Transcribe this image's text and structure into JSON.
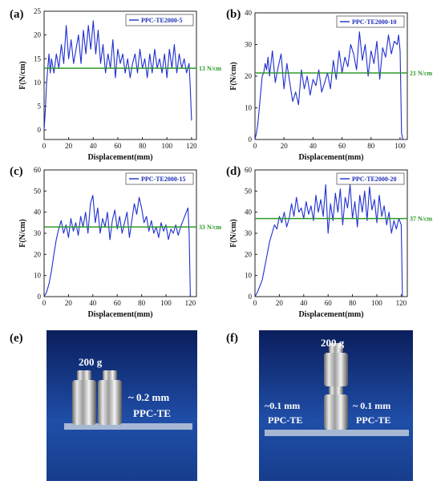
{
  "chart_data": [
    {
      "id": "a",
      "panel_label": "(a)",
      "type": "line",
      "series": [
        {
          "name": "PPC-TE2000-5",
          "color": "#1f2fd0",
          "x": [
            0,
            1,
            2,
            3,
            4,
            5,
            6,
            8,
            10,
            12,
            14,
            16,
            18,
            20,
            22,
            24,
            26,
            28,
            30,
            32,
            34,
            36,
            38,
            40,
            42,
            44,
            46,
            48,
            50,
            52,
            54,
            56,
            58,
            60,
            62,
            64,
            66,
            68,
            70,
            72,
            74,
            76,
            78,
            80,
            82,
            84,
            86,
            88,
            90,
            92,
            94,
            96,
            98,
            100,
            102,
            104,
            106,
            108,
            110,
            112,
            114,
            116,
            118,
            119,
            120
          ],
          "y": [
            0,
            4,
            10,
            13,
            16,
            12,
            15,
            12,
            16,
            13,
            18,
            14,
            22,
            15,
            19,
            14,
            17,
            20,
            14,
            21,
            16,
            22,
            17,
            23,
            16,
            21,
            14,
            18,
            12,
            16,
            13,
            19,
            11,
            17,
            14,
            16,
            12,
            15,
            11,
            14,
            16,
            12,
            17,
            13,
            15,
            11,
            16,
            12,
            17,
            13,
            15,
            12,
            16,
            11,
            17,
            13,
            18,
            12,
            16,
            13,
            15,
            12,
            14,
            9,
            2
          ]
        }
      ],
      "ref_value": 13,
      "ref_label": "13 N/cm",
      "xlim": [
        0,
        124
      ],
      "ylim": [
        -2,
        25
      ],
      "xticks": [
        0,
        20,
        40,
        60,
        80,
        100,
        120
      ],
      "yticks": [
        0,
        5,
        10,
        15,
        20,
        25
      ],
      "xlabel": "Displacement(mm)",
      "ylabel": "F(N/cm)"
    },
    {
      "id": "b",
      "panel_label": "(b)",
      "type": "line",
      "series": [
        {
          "name": "PPC-TE2000-10",
          "color": "#1f2fd0",
          "x": [
            0,
            1,
            2,
            3,
            4,
            5,
            6,
            7,
            8,
            9,
            10,
            12,
            14,
            16,
            18,
            20,
            22,
            24,
            26,
            28,
            30,
            32,
            34,
            36,
            38,
            40,
            42,
            44,
            46,
            48,
            50,
            52,
            54,
            56,
            58,
            60,
            62,
            64,
            66,
            68,
            70,
            72,
            74,
            76,
            78,
            80,
            82,
            84,
            86,
            88,
            90,
            92,
            94,
            96,
            98,
            99,
            100,
            101,
            102
          ],
          "y": [
            0,
            2,
            5,
            10,
            15,
            20,
            21,
            24,
            22,
            26,
            20,
            28,
            18,
            23,
            27,
            16,
            24,
            18,
            12,
            15,
            11,
            22,
            16,
            20,
            14,
            19,
            17,
            22,
            15,
            18,
            21,
            16,
            25,
            19,
            28,
            21,
            26,
            23,
            30,
            27,
            22,
            34,
            25,
            30,
            20,
            28,
            24,
            31,
            19,
            29,
            26,
            33,
            27,
            31,
            30,
            33,
            28,
            2,
            0
          ]
        }
      ],
      "ref_value": 21,
      "ref_label": "21 N/cm",
      "xlim": [
        0,
        105
      ],
      "ylim": [
        0,
        40
      ],
      "xticks": [
        0,
        20,
        40,
        60,
        80,
        100
      ],
      "yticks": [
        0,
        10,
        20,
        30,
        40
      ],
      "xlabel": "Displacement(mm)",
      "ylabel": "F(N/cm)"
    },
    {
      "id": "c",
      "panel_label": "(c)",
      "type": "line",
      "series": [
        {
          "name": "PPC-TE2000-15",
          "color": "#1f2fd0",
          "x": [
            0,
            2,
            4,
            6,
            8,
            10,
            12,
            14,
            16,
            18,
            20,
            22,
            24,
            26,
            28,
            30,
            32,
            34,
            36,
            38,
            40,
            42,
            44,
            46,
            48,
            50,
            52,
            54,
            56,
            58,
            60,
            62,
            64,
            66,
            68,
            70,
            72,
            74,
            76,
            78,
            80,
            82,
            84,
            86,
            88,
            90,
            92,
            94,
            96,
            98,
            100,
            102,
            104,
            106,
            108,
            110,
            112,
            114,
            116,
            118,
            119,
            120
          ],
          "y": [
            0,
            2,
            6,
            12,
            20,
            27,
            32,
            36,
            30,
            34,
            28,
            37,
            31,
            35,
            29,
            38,
            33,
            40,
            30,
            44,
            48,
            35,
            42,
            30,
            37,
            33,
            40,
            27,
            36,
            41,
            32,
            38,
            30,
            35,
            40,
            28,
            36,
            44,
            39,
            47,
            42,
            35,
            38,
            31,
            36,
            30,
            33,
            28,
            35,
            31,
            34,
            27,
            32,
            30,
            34,
            29,
            33,
            36,
            39,
            42,
            30,
            0
          ]
        }
      ],
      "ref_value": 33,
      "ref_label": "33 N/cm",
      "xlim": [
        0,
        125
      ],
      "ylim": [
        0,
        60
      ],
      "xticks": [
        0,
        20,
        40,
        60,
        80,
        100,
        120
      ],
      "yticks": [
        0,
        10,
        20,
        30,
        40,
        50,
        60
      ],
      "xlabel": "Displacement(mm)",
      "ylabel": "F(N/cm)"
    },
    {
      "id": "d",
      "panel_label": "(d)",
      "type": "line",
      "series": [
        {
          "name": "PPC-TE2000-20",
          "color": "#1f2fd0",
          "x": [
            0,
            2,
            4,
            6,
            8,
            10,
            12,
            14,
            16,
            18,
            20,
            22,
            24,
            26,
            28,
            30,
            32,
            34,
            36,
            38,
            40,
            42,
            44,
            46,
            48,
            50,
            52,
            54,
            56,
            58,
            60,
            62,
            64,
            66,
            68,
            70,
            72,
            74,
            76,
            78,
            80,
            82,
            84,
            86,
            88,
            90,
            92,
            94,
            96,
            98,
            100,
            102,
            104,
            106,
            108,
            110,
            112,
            114,
            116,
            118,
            120,
            121
          ],
          "y": [
            0,
            2,
            5,
            8,
            14,
            20,
            26,
            30,
            34,
            32,
            38,
            35,
            40,
            33,
            37,
            44,
            38,
            47,
            40,
            42,
            37,
            45,
            39,
            43,
            36,
            48,
            40,
            46,
            38,
            53,
            30,
            44,
            36,
            49,
            40,
            51,
            34,
            47,
            42,
            53,
            37,
            45,
            33,
            48,
            40,
            50,
            36,
            52,
            41,
            46,
            35,
            48,
            38,
            43,
            34,
            40,
            30,
            36,
            32,
            37,
            34,
            0
          ]
        }
      ],
      "ref_value": 37,
      "ref_label": "37 N/cm",
      "xlim": [
        0,
        125
      ],
      "ylim": [
        0,
        60
      ],
      "xticks": [
        0,
        20,
        40,
        60,
        80,
        100,
        120
      ],
      "yticks": [
        0,
        10,
        20,
        30,
        40,
        50,
        60
      ],
      "xlabel": "Displacement(mm)",
      "ylabel": "F(N/cm)"
    }
  ],
  "ref_color": "#2e9a2e",
  "photos": [
    {
      "id": "e",
      "panel_label": "(e)",
      "weight_label": "200 g",
      "thickness_labels": [
        "~ 0.2 mm"
      ],
      "film_labels": [
        "PPC-TE"
      ]
    },
    {
      "id": "f",
      "panel_label": "(f)",
      "weight_label": "200 g",
      "thickness_labels": [
        "~0.1 mm",
        "~ 0.1 mm"
      ],
      "film_labels": [
        "PPC-TE",
        "PPC-TE"
      ]
    }
  ]
}
